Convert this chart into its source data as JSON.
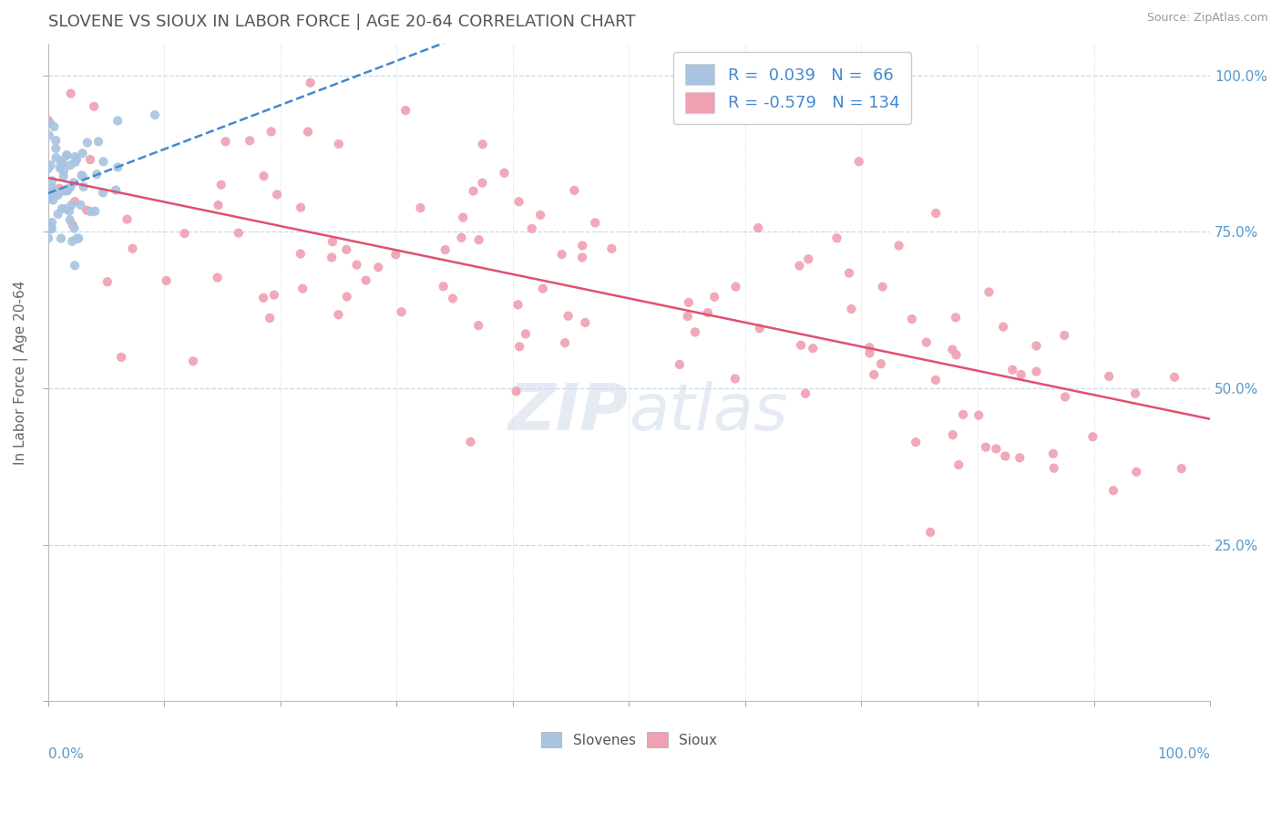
{
  "title": "SLOVENE VS SIOUX IN LABOR FORCE | AGE 20-64 CORRELATION CHART",
  "source_text": "Source: ZipAtlas.com",
  "ylabel": "In Labor Force | Age 20-64",
  "y_ticks": [
    0.0,
    0.25,
    0.5,
    0.75,
    1.0
  ],
  "y_tick_labels": [
    "",
    "25.0%",
    "50.0%",
    "75.0%",
    "100.0%"
  ],
  "slovene_R": 0.039,
  "slovene_N": 66,
  "sioux_R": -0.579,
  "sioux_N": 134,
  "slovene_color": "#a8c4e0",
  "sioux_color": "#f0a0b0",
  "slovene_line_color": "#4488cc",
  "sioux_line_color": "#e05070",
  "background_color": "#ffffff",
  "grid_color": "#c8d8e8",
  "title_color": "#555555",
  "axis_label_color": "#5599cc",
  "legend_text_color": "#4488cc",
  "seed": 12345,
  "watermark_color": "#d0dce8"
}
